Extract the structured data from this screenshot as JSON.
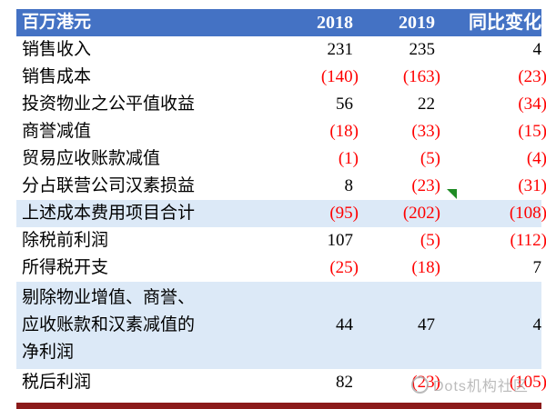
{
  "table": {
    "columns": [
      "百万港元",
      "2018",
      "2019",
      "同比变化"
    ],
    "rows": [
      {
        "label": "销售收入",
        "v2018": "231",
        "v2019": "235",
        "yoy": "4"
      },
      {
        "label": "销售成本",
        "v2018": "(140)",
        "v2019": "(163)",
        "yoy": "(23)"
      },
      {
        "label": "投资物业之公平值收益",
        "v2018": "56",
        "v2019": "22",
        "yoy": "(34)"
      },
      {
        "label": "商誉减值",
        "v2018": "(18)",
        "v2019": "(33)",
        "yoy": "(15)"
      },
      {
        "label": "贸易应收账款减值",
        "v2018": "(1)",
        "v2019": "(5)",
        "yoy": "(4)"
      },
      {
        "label": "分占联营公司汉素损益",
        "v2018": "8",
        "v2019": "(23)",
        "yoy": "(31)"
      },
      {
        "label": "上述成本费用项目合计",
        "v2018": "(95)",
        "v2019": "(202)",
        "yoy": "(108)",
        "highlight": true,
        "flag": true
      },
      {
        "label": "除税前利润",
        "v2018": "107",
        "v2019": "(5)",
        "yoy": "(112)"
      },
      {
        "label": "所得税开支",
        "v2018": "(25)",
        "v2019": "(18)",
        "yoy": "7"
      },
      {
        "label": "剔除物业增值、商誉、\n应收账款和汉素减值的\n净利润",
        "v2018": "44",
        "v2019": "47",
        "yoy": "4",
        "highlight": true,
        "tall": true
      },
      {
        "label": "税后利润",
        "v2018": "82",
        "v2019": "(23)",
        "yoy": "(105)"
      }
    ]
  },
  "watermark": {
    "text": "Dots机构社区"
  },
  "colors": {
    "header_bg": "#4472C4",
    "header_text": "#FFFFFF",
    "highlight_bg": "#DCE9F7",
    "negative": "#FF0000",
    "positive": "#000000",
    "footer_bar": "#8B1A1A",
    "flag_green": "#1F8B24",
    "watermark": "#ABABAB"
  },
  "chart_data": {
    "type": "table",
    "title": "",
    "unit": "百万港元",
    "columns": [
      "百万港元",
      "2018",
      "2019",
      "同比变化"
    ],
    "rows_display": [
      [
        "销售收入",
        "231",
        "235",
        "4"
      ],
      [
        "销售成本",
        "(140)",
        "(163)",
        "(23)"
      ],
      [
        "投资物业之公平值收益",
        "56",
        "22",
        "(34)"
      ],
      [
        "商誉减值",
        "(18)",
        "(33)",
        "(15)"
      ],
      [
        "贸易应收账款减值",
        "(1)",
        "(5)",
        "(4)"
      ],
      [
        "分占联营公司汉素损益",
        "8",
        "(23)",
        "(31)"
      ],
      [
        "上述成本费用项目合计",
        "(95)",
        "(202)",
        "(108)"
      ],
      [
        "除税前利润",
        "107",
        "(5)",
        "(112)"
      ],
      [
        "所得税开支",
        "(25)",
        "(18)",
        "7"
      ],
      [
        "剔除物业增值、商誉、应收账款和汉素减值的净利润",
        "44",
        "47",
        "4"
      ],
      [
        "税后利润",
        "82",
        "(23)",
        "(105)"
      ]
    ],
    "rows_numeric": [
      [
        "销售收入",
        231,
        235,
        4
      ],
      [
        "销售成本",
        -140,
        -163,
        -23
      ],
      [
        "投资物业之公平值收益",
        56,
        22,
        -34
      ],
      [
        "商誉减值",
        -18,
        -33,
        -15
      ],
      [
        "贸易应收账款减值",
        -1,
        -5,
        -4
      ],
      [
        "分占联营公司汉素损益",
        8,
        -23,
        -31
      ],
      [
        "上述成本费用项目合计",
        -95,
        -202,
        -108
      ],
      [
        "除税前利润",
        107,
        -5,
        -112
      ],
      [
        "所得税开支",
        -25,
        -18,
        7
      ],
      [
        "剔除物业增值、商誉、应收账款和汉素减值的净利润",
        44,
        47,
        4
      ],
      [
        "税后利润",
        82,
        -23,
        -105
      ]
    ],
    "highlighted_rows": [
      "上述成本费用项目合计",
      "剔除物业增值、商誉、应收账款和汉素减值的净利润"
    ],
    "notes": "负数以括号表示并以红色显示；表头为蓝底白字"
  }
}
